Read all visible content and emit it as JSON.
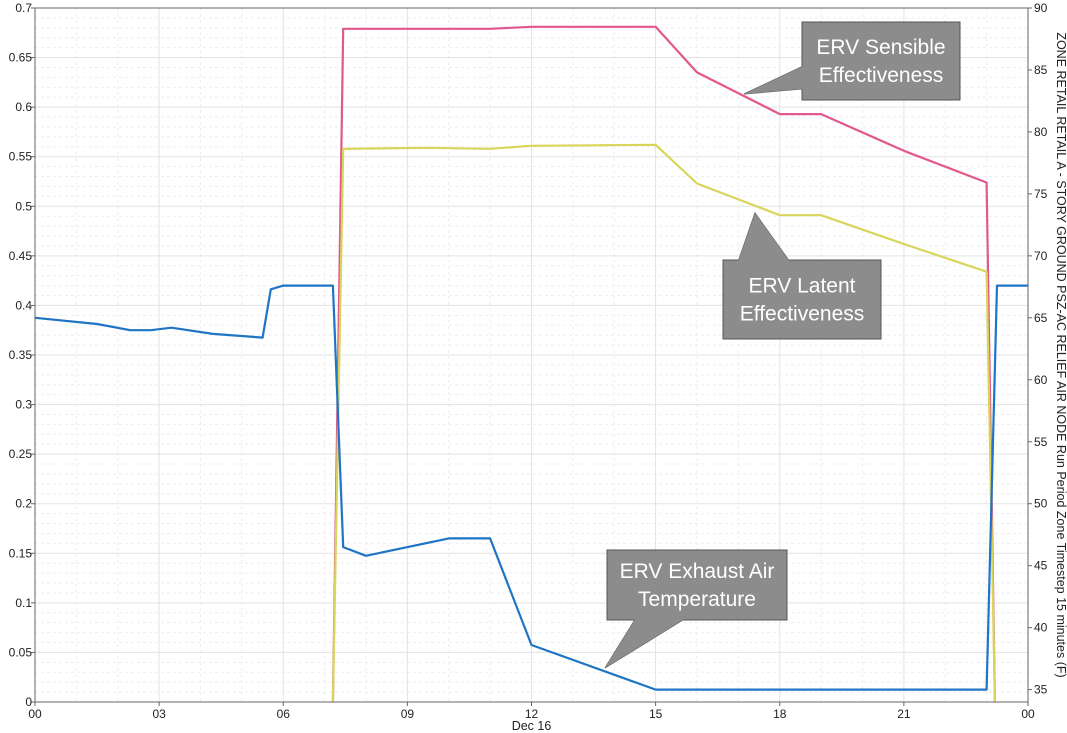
{
  "chart_data": {
    "type": "line",
    "xlabel": "Dec 16",
    "x_tick_labels": [
      "00",
      "03",
      "06",
      "09",
      "12",
      "15",
      "18",
      "21",
      "00"
    ],
    "x_range_hours": [
      0,
      24
    ],
    "y_left": {
      "ylim": [
        0,
        0.7
      ],
      "tick_labels": [
        "0",
        "0.05",
        "0.1",
        "0.15",
        "0.2",
        "0.25",
        "0.3",
        "0.35",
        "0.4",
        "0.45",
        "0.5",
        "0.55",
        "0.6",
        "0.65",
        "0.7"
      ]
    },
    "y_right": {
      "ylabel": "ZONE RETAIL RETAIL A - STORY GROUND PSZ-AC RELIEF AIR NODE Run Period Zone Timestep 15 minutes (F)",
      "ylim": [
        34,
        90
      ],
      "tick_labels": [
        "35",
        "40",
        "45",
        "50",
        "55",
        "60",
        "65",
        "70",
        "75",
        "80",
        "85",
        "90"
      ]
    },
    "grid": true,
    "colors": {
      "sensible": "#e0588e",
      "latent": "#d8d65a",
      "exhaust": "#1f74c4",
      "grid": "#e3e3e3",
      "callout_fill": "#8c8c8c"
    },
    "series": [
      {
        "name": "ERV Sensible Effectiveness",
        "axis": "left",
        "x": [
          7.2,
          7.45,
          9.5,
          11.0,
          12.0,
          15.0,
          16.0,
          18.0,
          19.0,
          21.0,
          23.0,
          23.2
        ],
        "y": [
          0.0,
          0.679,
          0.679,
          0.679,
          0.681,
          0.681,
          0.635,
          0.593,
          0.593,
          0.556,
          0.524,
          0.0
        ]
      },
      {
        "name": "ERV Latent Effectiveness",
        "axis": "left",
        "x": [
          7.2,
          7.45,
          9.5,
          11.0,
          12.0,
          15.0,
          16.0,
          18.0,
          19.0,
          21.0,
          23.0,
          23.2
        ],
        "y": [
          0.0,
          0.558,
          0.559,
          0.558,
          0.561,
          0.562,
          0.523,
          0.491,
          0.491,
          0.462,
          0.434,
          0.0
        ]
      },
      {
        "name": "ERV Exhaust Air Temperature",
        "axis": "right",
        "x": [
          0.0,
          1.5,
          2.3,
          2.8,
          3.3,
          4.3,
          5.5,
          5.7,
          6.0,
          7.2,
          7.45,
          8.0,
          10.0,
          11.0,
          12.0,
          15.0,
          16.0,
          18.0,
          19.0,
          21.0,
          23.0,
          23.25,
          24.0
        ],
        "y": [
          65.0,
          64.5,
          64.0,
          64.0,
          64.2,
          63.7,
          63.4,
          67.3,
          67.6,
          67.6,
          46.5,
          45.8,
          47.2,
          47.2,
          38.6,
          35.0,
          35.0,
          35.0,
          35.0,
          35.0,
          35.0,
          67.6,
          67.6
        ]
      }
    ],
    "annotations": [
      {
        "text_lines": [
          "ERV Sensible",
          "Effectiveness"
        ]
      },
      {
        "text_lines": [
          "ERV Latent",
          "Effectiveness"
        ]
      },
      {
        "text_lines": [
          "ERV Exhaust Air",
          "Temperature"
        ]
      }
    ]
  }
}
